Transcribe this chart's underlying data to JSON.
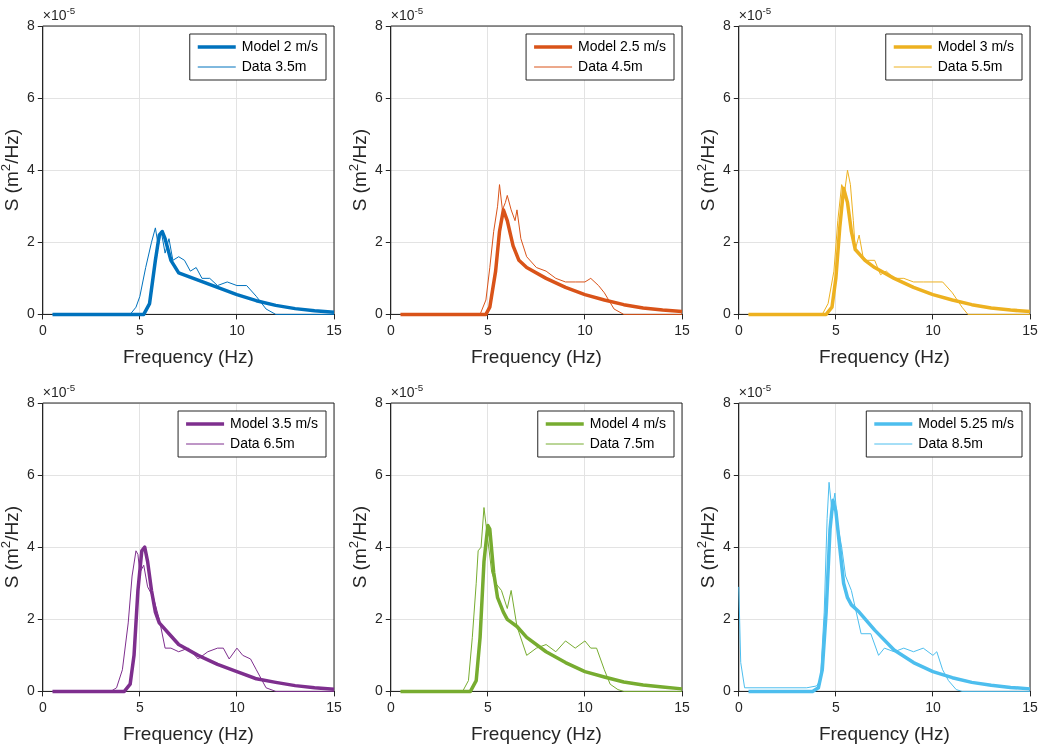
{
  "chart_data": [
    {
      "type": "line",
      "xlabel": "Frequency (Hz)",
      "ylabel": "S (m$^{2}$/Hz)",
      "annotations": [
        "×10$^{-5}$"
      ],
      "xlim": [
        0,
        15
      ],
      "xticks": [
        0,
        5,
        10,
        15
      ],
      "ylim": [
        0,
        8
      ],
      "yticks": [
        0,
        2,
        4,
        6,
        8
      ],
      "grid": true,
      "legend": "top right",
      "marker": "none",
      "series": [
        {
          "name": "Model 2 m/s",
          "color": "#0072bd",
          "x": [
            0.5,
            5.2,
            5.5,
            5.8,
            6.0,
            6.15,
            6.3,
            6.6,
            7.0,
            8,
            9,
            10,
            11,
            12,
            13,
            14,
            15
          ],
          "values": [
            0,
            0,
            0.3,
            1.5,
            2.2,
            2.3,
            2.1,
            1.5,
            1.15,
            0.95,
            0.75,
            0.55,
            0.38,
            0.25,
            0.16,
            0.1,
            0.06
          ]
        },
        {
          "name": "Data 3.5m",
          "color": "#0072bd",
          "x": [
            0.5,
            4.5,
            4.8,
            5.0,
            5.3,
            5.6,
            5.8,
            5.95,
            6.1,
            6.3,
            6.5,
            6.7,
            7.0,
            7.3,
            7.6,
            7.9,
            8.2,
            8.6,
            9.0,
            9.5,
            10.0,
            10.5,
            11.0,
            11.5,
            12,
            15
          ],
          "values": [
            0,
            0,
            0.2,
            0.5,
            1.3,
            2.0,
            2.4,
            1.9,
            2.3,
            1.7,
            2.1,
            1.5,
            1.6,
            1.5,
            1.2,
            1.3,
            1.0,
            1.0,
            0.8,
            0.9,
            0.8,
            0.8,
            0.5,
            0.15,
            0,
            0
          ]
        }
      ]
    },
    {
      "type": "line",
      "xlabel": "Frequency (Hz)",
      "ylabel": "S (m$^{2}$/Hz)",
      "annotations": [
        "×10$^{-5}$"
      ],
      "xlim": [
        0,
        15
      ],
      "xticks": [
        0,
        5,
        10,
        15
      ],
      "ylim": [
        0,
        8
      ],
      "yticks": [
        0,
        2,
        4,
        6,
        8
      ],
      "grid": true,
      "legend": "top right",
      "marker": "none",
      "series": [
        {
          "name": "Model 2.5 m/s",
          "color": "#d95319",
          "x": [
            0.5,
            4.9,
            5.1,
            5.4,
            5.6,
            5.8,
            6.0,
            6.3,
            6.6,
            7.0,
            8,
            9,
            10,
            11,
            12,
            13,
            14,
            15
          ],
          "values": [
            0,
            0,
            0.2,
            1.2,
            2.3,
            2.9,
            2.6,
            1.9,
            1.5,
            1.3,
            1.0,
            0.75,
            0.55,
            0.4,
            0.27,
            0.18,
            0.12,
            0.08
          ]
        },
        {
          "name": "Data 4.5m",
          "color": "#d95319",
          "x": [
            0.5,
            4.6,
            4.9,
            5.1,
            5.3,
            5.5,
            5.6,
            5.75,
            5.9,
            6.0,
            6.2,
            6.4,
            6.5,
            6.7,
            7.0,
            7.5,
            8,
            8.5,
            9,
            9.5,
            10,
            10.3,
            10.7,
            11.0,
            11.5,
            12,
            15
          ],
          "values": [
            0,
            0,
            0.4,
            1.3,
            2.3,
            3.0,
            3.6,
            2.9,
            3.1,
            3.3,
            2.9,
            2.6,
            2.9,
            2.1,
            1.6,
            1.3,
            1.2,
            1.0,
            0.9,
            0.9,
            0.9,
            1.0,
            0.8,
            0.6,
            0.15,
            0,
            0
          ]
        }
      ]
    },
    {
      "type": "line",
      "xlabel": "Frequency (Hz)",
      "ylabel": "S (m$^{2}$/Hz)",
      "annotations": [
        "×10$^{-5}$"
      ],
      "xlim": [
        0,
        15
      ],
      "xticks": [
        0,
        5,
        10,
        15
      ],
      "ylim": [
        0,
        8
      ],
      "yticks": [
        0,
        2,
        4,
        6,
        8
      ],
      "grid": true,
      "legend": "top right",
      "marker": "none",
      "series": [
        {
          "name": "Model 3 m/s",
          "color": "#edb120",
          "x": [
            0.5,
            4.5,
            4.8,
            5.0,
            5.2,
            5.4,
            5.6,
            5.8,
            6.0,
            6.5,
            7.0,
            8,
            9,
            10,
            11,
            12,
            13,
            14,
            15
          ],
          "values": [
            0,
            0,
            0.2,
            1.0,
            2.4,
            3.5,
            3.1,
            2.3,
            1.8,
            1.5,
            1.3,
            1.0,
            0.75,
            0.55,
            0.4,
            0.27,
            0.18,
            0.12,
            0.08
          ]
        },
        {
          "name": "Data 5.5m",
          "color": "#edb120",
          "x": [
            0.5,
            4.3,
            4.6,
            4.9,
            5.1,
            5.3,
            5.45,
            5.6,
            5.75,
            5.9,
            6.0,
            6.2,
            6.4,
            6.6,
            7.0,
            7.3,
            7.6,
            8,
            8.5,
            9,
            9.5,
            10,
            10.5,
            11.0,
            11.5,
            11.8,
            15
          ],
          "values": [
            0,
            0,
            0.3,
            1.2,
            2.6,
            3.6,
            3.4,
            4.0,
            3.6,
            2.6,
            1.8,
            2.2,
            1.6,
            1.5,
            1.5,
            1.1,
            1.2,
            1.0,
            1.0,
            0.9,
            0.9,
            0.9,
            0.9,
            0.6,
            0.2,
            0,
            0
          ]
        }
      ]
    },
    {
      "type": "line",
      "xlabel": "Frequency (Hz)",
      "ylabel": "S (m$^{2}$/Hz)",
      "annotations": [
        "×10$^{-5}$"
      ],
      "xlim": [
        0,
        15
      ],
      "xticks": [
        0,
        5,
        10,
        15
      ],
      "ylim": [
        0,
        8
      ],
      "yticks": [
        0,
        2,
        4,
        6,
        8
      ],
      "grid": true,
      "legend": "top right",
      "marker": "none",
      "series": [
        {
          "name": "Model 3.5 m/s",
          "color": "#7e2f8e",
          "x": [
            0.5,
            4.2,
            4.5,
            4.7,
            4.9,
            5.1,
            5.25,
            5.4,
            5.6,
            5.8,
            6.0,
            6.5,
            7.0,
            8,
            9,
            10,
            11,
            12,
            13,
            14,
            15
          ],
          "values": [
            0,
            0,
            0.2,
            1.0,
            2.8,
            3.9,
            4.0,
            3.6,
            2.8,
            2.2,
            1.9,
            1.6,
            1.3,
            1.0,
            0.75,
            0.55,
            0.35,
            0.25,
            0.16,
            0.1,
            0.06
          ]
        },
        {
          "name": "Data 6.5m",
          "color": "#7e2f8e",
          "x": [
            0.5,
            3.5,
            3.8,
            4.1,
            4.4,
            4.6,
            4.8,
            4.9,
            5.0,
            5.2,
            5.4,
            5.7,
            6.0,
            6.3,
            6.6,
            7.0,
            7.5,
            8.0,
            8.5,
            9.0,
            9.3,
            9.6,
            10.0,
            10.3,
            10.7,
            11.0,
            11.5,
            12,
            15
          ],
          "values": [
            0,
            0,
            0.1,
            0.6,
            1.9,
            3.2,
            3.9,
            3.8,
            3.3,
            3.5,
            2.9,
            2.6,
            2.0,
            1.2,
            1.2,
            1.1,
            1.2,
            0.9,
            1.1,
            1.2,
            1.2,
            0.9,
            1.2,
            1.0,
            0.9,
            0.6,
            0.1,
            0,
            0
          ]
        }
      ]
    },
    {
      "type": "line",
      "xlabel": "Frequency (Hz)",
      "ylabel": "S (m$^{2}$/Hz)",
      "annotations": [
        "×10$^{-5}$"
      ],
      "xlim": [
        0,
        15
      ],
      "xticks": [
        0,
        5,
        10,
        15
      ],
      "ylim": [
        0,
        8
      ],
      "yticks": [
        0,
        2,
        4,
        6,
        8
      ],
      "grid": true,
      "legend": "top right",
      "marker": "none",
      "series": [
        {
          "name": "Model 4 m/s",
          "color": "#77ac30",
          "x": [
            0.5,
            4.1,
            4.4,
            4.6,
            4.8,
            5.0,
            5.1,
            5.3,
            5.5,
            5.8,
            6.0,
            6.5,
            7.0,
            8,
            9,
            10,
            11,
            12,
            13,
            14,
            15
          ],
          "values": [
            0,
            0,
            0.3,
            1.5,
            3.6,
            4.6,
            4.5,
            3.3,
            2.6,
            2.2,
            2.0,
            1.8,
            1.5,
            1.1,
            0.8,
            0.55,
            0.4,
            0.26,
            0.18,
            0.12,
            0.07
          ]
        },
        {
          "name": "Data 7.5m",
          "color": "#77ac30",
          "x": [
            0.5,
            3.7,
            4.0,
            4.2,
            4.4,
            4.5,
            4.65,
            4.8,
            5.0,
            5.2,
            5.4,
            5.7,
            6.0,
            6.2,
            6.5,
            7.0,
            7.5,
            8.0,
            8.5,
            9.0,
            9.5,
            10.0,
            10.3,
            10.6,
            11.0,
            11.3,
            11.7,
            12,
            15
          ],
          "values": [
            0,
            0,
            0.3,
            1.5,
            3.0,
            3.9,
            4.0,
            5.1,
            4.2,
            3.3,
            3.0,
            2.8,
            2.3,
            2.8,
            1.8,
            1.0,
            1.2,
            1.3,
            1.1,
            1.4,
            1.2,
            1.4,
            1.2,
            1.2,
            0.6,
            0.2,
            0.05,
            0,
            0
          ]
        }
      ]
    },
    {
      "type": "line",
      "xlabel": "Frequency (Hz)",
      "ylabel": "S (m$^{2}$/Hz)",
      "annotations": [
        "×10$^{-5}$"
      ],
      "xlim": [
        0,
        15
      ],
      "xticks": [
        0,
        5,
        10,
        15
      ],
      "ylim": [
        0,
        8
      ],
      "yticks": [
        0,
        2,
        4,
        6,
        8
      ],
      "grid": true,
      "legend": "top right",
      "marker": "none",
      "series": [
        {
          "name": "Model 5.25 m/s",
          "color": "#4dbeee",
          "x": [
            0.5,
            3.8,
            4.1,
            4.3,
            4.5,
            4.7,
            4.85,
            5.0,
            5.2,
            5.4,
            5.6,
            5.8,
            6.2,
            7.0,
            8,
            9,
            10,
            11,
            12,
            13,
            14,
            15
          ],
          "values": [
            0,
            0,
            0.1,
            0.6,
            2.2,
            4.5,
            5.3,
            5.0,
            4.0,
            3.0,
            2.6,
            2.4,
            2.2,
            1.7,
            1.15,
            0.8,
            0.55,
            0.38,
            0.25,
            0.17,
            0.11,
            0.07
          ]
        },
        {
          "name": "Data 8.5m",
          "color": "#4dbeee",
          "x": [
            0,
            0.1,
            0.3,
            3.5,
            4.0,
            4.2,
            4.4,
            4.55,
            4.65,
            4.8,
            4.95,
            5.1,
            5.3,
            5.5,
            5.8,
            6.3,
            6.8,
            7.2,
            7.5,
            8.0,
            8.5,
            9.0,
            9.5,
            10.0,
            10.2,
            10.5,
            10.8,
            11.2,
            11.5,
            15
          ],
          "values": [
            2.9,
            0.8,
            0.1,
            0.1,
            0.15,
            0.3,
            2.2,
            4.8,
            5.8,
            5.0,
            5.5,
            4.6,
            4.0,
            3.2,
            2.8,
            1.6,
            1.6,
            1.0,
            1.2,
            1.1,
            1.2,
            1.1,
            1.2,
            1.0,
            1.1,
            0.6,
            0.3,
            0.05,
            0,
            0
          ]
        }
      ]
    }
  ]
}
